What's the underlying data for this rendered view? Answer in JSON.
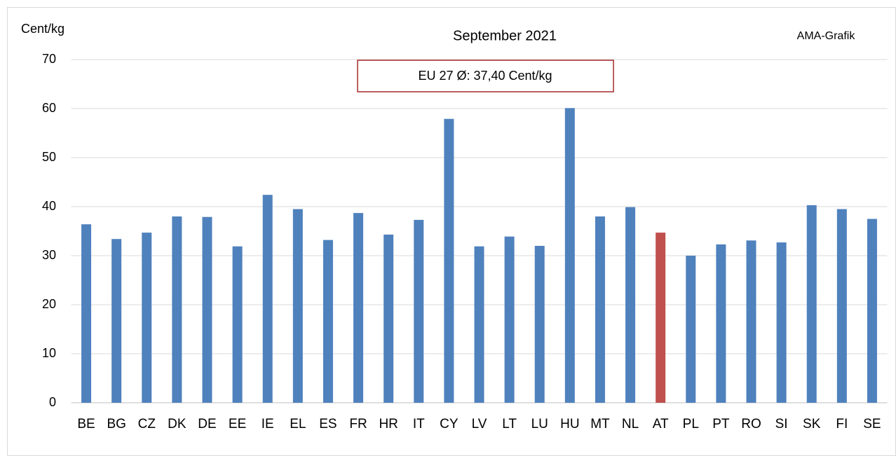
{
  "chart_data": {
    "type": "bar",
    "title": "September 2021",
    "y_label": "Cent/kg",
    "source": "AMA-Grafik",
    "annotation": "EU 27 Ø: 37,40 Cent/kg",
    "categories": [
      "BE",
      "BG",
      "CZ",
      "DK",
      "DE",
      "EE",
      "IE",
      "EL",
      "ES",
      "FR",
      "HR",
      "IT",
      "CY",
      "LV",
      "LT",
      "LU",
      "HU",
      "MT",
      "NL",
      "AT",
      "PL",
      "PT",
      "RO",
      "SI",
      "SK",
      "FI",
      "SE"
    ],
    "values": [
      36.4,
      33.4,
      34.7,
      38.0,
      37.9,
      31.9,
      42.4,
      39.5,
      33.2,
      38.7,
      34.3,
      37.3,
      57.9,
      31.9,
      33.9,
      32.0,
      60.1,
      38.0,
      39.9,
      34.7,
      30.0,
      32.3,
      33.1,
      32.7,
      40.3,
      39.5,
      37.5
    ],
    "colors": [
      "#4f81bd",
      "#4f81bd",
      "#4f81bd",
      "#4f81bd",
      "#4f81bd",
      "#4f81bd",
      "#4f81bd",
      "#4f81bd",
      "#4f81bd",
      "#4f81bd",
      "#4f81bd",
      "#4f81bd",
      "#4f81bd",
      "#4f81bd",
      "#4f81bd",
      "#4f81bd",
      "#4f81bd",
      "#4f81bd",
      "#4f81bd",
      "#c0504d",
      "#4f81bd",
      "#4f81bd",
      "#4f81bd",
      "#4f81bd",
      "#4f81bd",
      "#4f81bd",
      "#4f81bd"
    ],
    "ylim": [
      0,
      70
    ],
    "yticks": [
      0,
      10,
      20,
      30,
      40,
      50,
      60,
      70
    ],
    "grid": true
  }
}
